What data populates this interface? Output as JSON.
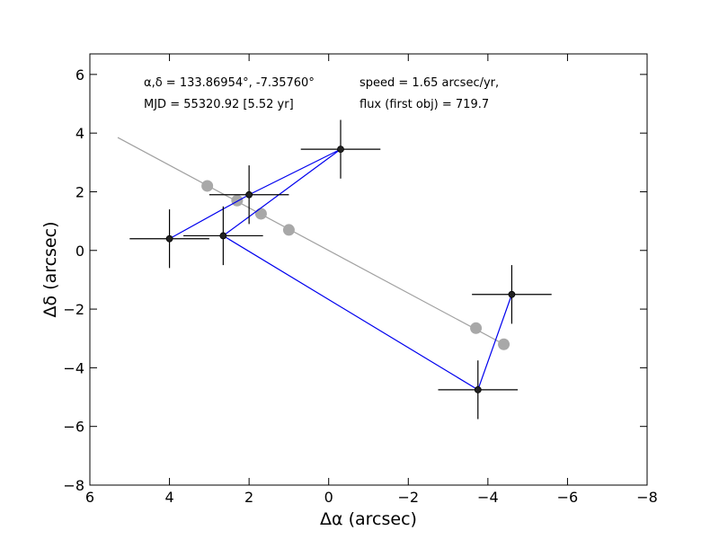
{
  "chart_data": {
    "type": "scatter",
    "xlabel": "Δα (arcsec)",
    "ylabel": "Δδ (arcsec)",
    "xlim": [
      6,
      -8
    ],
    "ylim": [
      -8,
      6.7
    ],
    "xticks": [
      6,
      4,
      2,
      0,
      -2,
      -4,
      -6,
      -8
    ],
    "xtick_labels": [
      "6",
      "4",
      "2",
      "0",
      "−2",
      "−4",
      "−6",
      "−8"
    ],
    "yticks": [
      6,
      4,
      2,
      0,
      -2,
      -4,
      -6,
      -8
    ],
    "ytick_labels": [
      "6",
      "4",
      "2",
      "0",
      "−2",
      "−4",
      "−6",
      "−8"
    ],
    "grid": false,
    "annotations": {
      "coords": "α,δ = 133.86954°, -7.35760°",
      "mjd": "MJD = 55320.92 [5.52 yr]",
      "speed": "speed = 1.65 arcsec/yr,",
      "flux": "flux (first obj) = 719.7"
    },
    "fit_line": {
      "color": "#a0a0a0",
      "x": [
        5.3,
        -4.4
      ],
      "y": [
        3.85,
        -3.2
      ]
    },
    "model_points": {
      "color": "#a8a8a8",
      "x": [
        3.05,
        2.3,
        1.7,
        1.0,
        -3.7,
        -4.4
      ],
      "y": [
        2.2,
        1.7,
        1.25,
        0.7,
        -2.65,
        -3.2
      ]
    },
    "observations": {
      "color": "#222222",
      "line_color": "#0000ee",
      "x": [
        4.0,
        2.65,
        2.0,
        -0.3,
        -3.75,
        -4.6
      ],
      "y": [
        0.4,
        0.5,
        1.9,
        3.45,
        -4.75,
        -1.5
      ],
      "xerr": [
        1.0,
        1.0,
        1.0,
        1.0,
        1.0,
        1.0
      ],
      "yerr": [
        1.0,
        1.0,
        1.0,
        1.0,
        1.0,
        1.0
      ]
    },
    "connect_order": [
      0,
      2,
      3,
      1,
      4,
      5
    ]
  }
}
